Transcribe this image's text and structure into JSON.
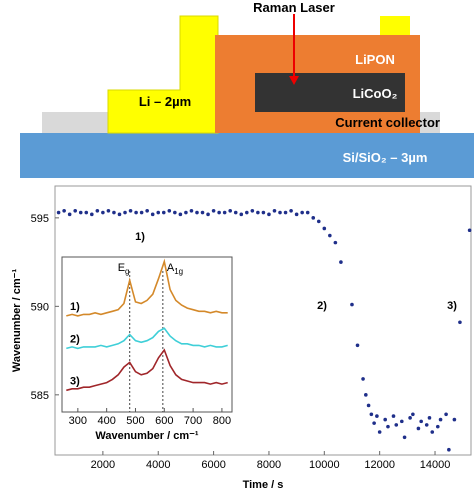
{
  "schematic": {
    "raman_laser": "Raman Laser",
    "lipon": "LiPON",
    "licoo2": "LiCoO₂",
    "li": "Li – 2µm",
    "current_collector": "Current collector",
    "substrate": "Si/SiO₂ – 3µm"
  },
  "chart_data": [
    {
      "type": "scatter",
      "color": "#1f2f8a",
      "x": [
        400,
        600,
        800,
        1000,
        1200,
        1400,
        1600,
        1800,
        2000,
        2200,
        2400,
        2600,
        2800,
        3000,
        3200,
        3400,
        3600,
        3800,
        4000,
        4200,
        4400,
        4600,
        4800,
        5000,
        5200,
        5400,
        5600,
        5800,
        6000,
        6200,
        6400,
        6600,
        6800,
        7000,
        7200,
        7400,
        7600,
        7800,
        8000,
        8200,
        8400,
        8600,
        8800,
        9000,
        9200,
        9400,
        9600,
        9800,
        10000,
        10200,
        10400,
        10600,
        11000,
        11200,
        11400,
        11500,
        11600,
        11700,
        11800,
        11900,
        12000,
        12200,
        12300,
        12500,
        12600,
        12800,
        12900,
        13100,
        13200,
        13400,
        13500,
        13700,
        13800,
        13900,
        14100,
        14200,
        14400,
        14500,
        14700,
        14900,
        15250
      ],
      "values": [
        595.3,
        595.4,
        595.2,
        595.4,
        595.3,
        595.3,
        595.2,
        595.4,
        595.3,
        595.4,
        595.3,
        595.2,
        595.3,
        595.4,
        595.3,
        595.3,
        595.4,
        595.2,
        595.3,
        595.3,
        595.4,
        595.3,
        595.2,
        595.3,
        595.4,
        595.3,
        595.3,
        595.2,
        595.4,
        595.3,
        595.3,
        595.4,
        595.3,
        595.2,
        595.3,
        595.4,
        595.3,
        595.3,
        595.2,
        595.4,
        595.3,
        595.3,
        595.4,
        595.2,
        595.3,
        595.3,
        595.0,
        594.8,
        594.4,
        594.0,
        593.6,
        592.5,
        590.1,
        587.8,
        585.9,
        585.0,
        584.4,
        583.9,
        583.4,
        583.8,
        582.9,
        583.6,
        583.2,
        583.8,
        583.3,
        583.5,
        582.6,
        583.7,
        583.9,
        583.1,
        583.5,
        583.3,
        583.7,
        582.9,
        583.2,
        583.6,
        583.9,
        581.9,
        583.6,
        589.1,
        594.3
      ],
      "xlim": [
        270,
        15300
      ],
      "ylim": [
        581.6,
        596.8
      ],
      "xticks": [
        2000,
        4000,
        6000,
        8000,
        10000,
        12000,
        14000
      ],
      "yticks": [
        585,
        590,
        595
      ],
      "x_label": "Time / s",
      "y_label": "Wavenumber / cm⁻¹",
      "annotations": [
        "1)",
        "2)",
        "3)"
      ]
    },
    {
      "type": "line",
      "x": [
        260,
        280,
        300,
        320,
        340,
        360,
        380,
        400,
        420,
        440,
        460,
        480,
        500,
        520,
        540,
        560,
        580,
        600,
        620,
        640,
        660,
        680,
        700,
        720,
        740,
        760,
        780,
        800,
        820
      ],
      "series": [
        {
          "name": "1)",
          "color": "#d4892a",
          "values": [
            6.2,
            6.3,
            6.2,
            6.3,
            6.3,
            6.4,
            6.3,
            6.4,
            6.5,
            6.6,
            7.0,
            8.5,
            7.1,
            7.0,
            7.2,
            7.6,
            8.6,
            9.7,
            7.9,
            7.2,
            6.9,
            6.7,
            6.6,
            6.5,
            6.5,
            6.4,
            6.5,
            6.4,
            6.4
          ]
        },
        {
          "name": "2)",
          "color": "#3fcfd8",
          "values": [
            4.1,
            4.2,
            4.1,
            4.2,
            4.2,
            4.2,
            4.3,
            4.2,
            4.3,
            4.4,
            4.6,
            5.0,
            4.6,
            4.5,
            4.6,
            4.8,
            5.2,
            5.4,
            4.9,
            4.6,
            4.4,
            4.4,
            4.3,
            4.3,
            4.2,
            4.3,
            4.2,
            4.2,
            4.3
          ]
        },
        {
          "name": "3)",
          "color": "#a0262a",
          "values": [
            1.4,
            1.5,
            1.5,
            1.6,
            1.6,
            1.7,
            1.8,
            1.9,
            2.1,
            2.4,
            2.9,
            3.2,
            2.6,
            2.4,
            2.5,
            2.8,
            3.5,
            4.0,
            3.0,
            2.4,
            2.1,
            2.0,
            1.9,
            1.9,
            1.9,
            1.8,
            1.9,
            1.8,
            1.9
          ]
        }
      ],
      "xlim": [
        245,
        835
      ],
      "ylim": [
        0,
        10
      ],
      "xticks": [
        300,
        400,
        500,
        600,
        700,
        800
      ],
      "x_label": "Wavenumber / cm⁻¹",
      "peak_labels": [
        {
          "base": "E",
          "sub": "g"
        },
        {
          "base": "A",
          "sub": "1g"
        }
      ],
      "ref_lines": [
        480,
        595
      ]
    }
  ]
}
